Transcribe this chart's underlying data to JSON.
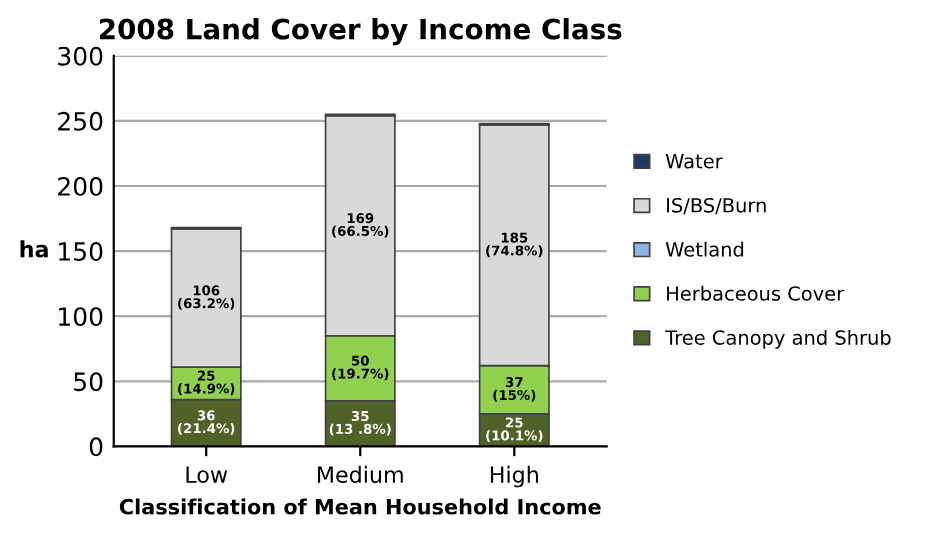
{
  "chart_data": {
    "type": "bar",
    "title": "2008 Land Cover by Income Class",
    "xlabel": "Classification of Mean Household Income",
    "ylabel": "ha",
    "categories": [
      "Low",
      "Medium",
      "High"
    ],
    "stacked": true,
    "series": [
      {
        "name": "Tree Canopy and Shrub",
        "color": "#4f6228",
        "values": [
          36,
          35,
          25
        ],
        "value_labels": [
          "36\n(21.4%)",
          "35\n(13 .8%)",
          "25\n(10.1%)"
        ]
      },
      {
        "name": "Herbaceous Cover",
        "color": "#92d050",
        "values": [
          25,
          50,
          37
        ],
        "value_labels": [
          "25\n(14.9%)",
          "50\n(19.7%)",
          "37\n(15%)"
        ]
      },
      {
        "name": "Wetland",
        "color": "#8db4e2",
        "values": [
          0,
          0,
          0
        ]
      },
      {
        "name": "IS/BS/Burn",
        "color": "#d9d9d9",
        "values": [
          106,
          169,
          185
        ],
        "value_labels": [
          "106\n(63.2%)",
          "169\n(66.5%)",
          "185\n(74.8%)"
        ]
      },
      {
        "name": "Water",
        "color": "#1f3864",
        "values": [
          1,
          1,
          1
        ]
      }
    ],
    "ylim": [
      0,
      300
    ],
    "yticks": [
      0,
      50,
      100,
      150,
      200,
      250,
      300
    ],
    "grid": "y",
    "legend": "right"
  }
}
